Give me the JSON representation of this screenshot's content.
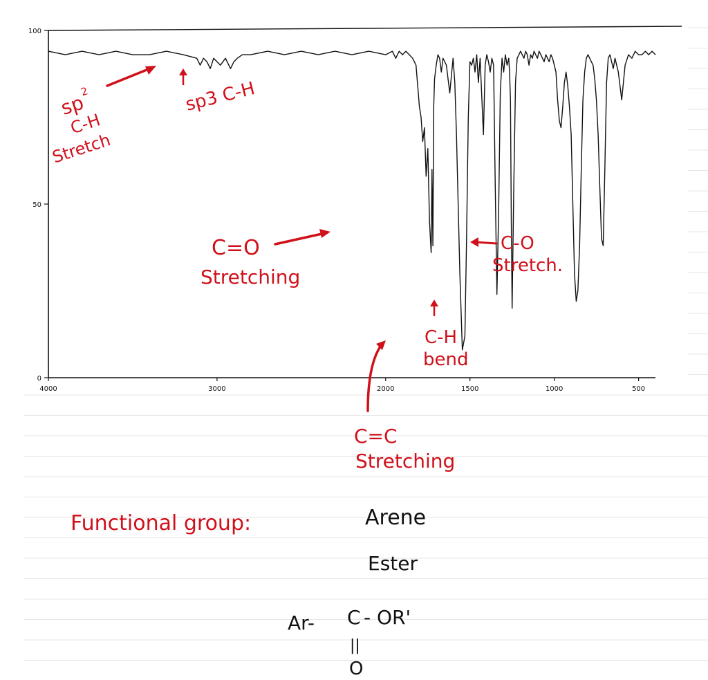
{
  "colors": {
    "annotation": "#d0101a",
    "ink": "#111111",
    "ruled_line": "#e6e6e6",
    "spectrum": "#111111"
  },
  "chart_data": {
    "type": "line",
    "title": "",
    "xlabel": "",
    "ylabel": "",
    "xlim": [
      4000,
      400
    ],
    "ylim": [
      0,
      100
    ],
    "x_ticks": [
      {
        "value": 4000,
        "label": "4000"
      },
      {
        "value": 3000,
        "label": "3000"
      },
      {
        "value": 2000,
        "label": "2000"
      },
      {
        "value": 1500,
        "label": "1500"
      },
      {
        "value": 1000,
        "label": "1000"
      },
      {
        "value": 500,
        "label": "500"
      }
    ],
    "y_ticks": [
      {
        "value": 0,
        "label": "0"
      },
      {
        "value": 50,
        "label": "50"
      },
      {
        "value": 100,
        "label": "100"
      }
    ],
    "grid": false,
    "series": [
      {
        "x": [
          4000,
          3900,
          3800,
          3700,
          3600,
          3500,
          3400,
          3300,
          3200,
          3120,
          3100,
          3080,
          3060,
          3040,
          3020,
          3000,
          2980,
          2950,
          2920,
          2900,
          2880,
          2850,
          2800,
          2700,
          2600,
          2500,
          2400,
          2300,
          2200,
          2100,
          2000,
          1960,
          1940,
          1920,
          1900,
          1880,
          1860,
          1840,
          1820,
          1800,
          1790,
          1780,
          1770,
          1760,
          1750,
          1740,
          1730,
          1725,
          1720,
          1715,
          1710,
          1700,
          1690,
          1680,
          1670,
          1660,
          1640,
          1620,
          1600,
          1590,
          1580,
          1560,
          1545,
          1530,
          1520,
          1510,
          1500,
          1490,
          1480,
          1470,
          1460,
          1450,
          1440,
          1420,
          1410,
          1400,
          1390,
          1380,
          1370,
          1360,
          1350,
          1340,
          1330,
          1320,
          1310,
          1300,
          1290,
          1280,
          1270,
          1265,
          1260,
          1255,
          1250,
          1240,
          1230,
          1220,
          1210,
          1200,
          1190,
          1180,
          1170,
          1160,
          1150,
          1140,
          1130,
          1120,
          1110,
          1100,
          1090,
          1080,
          1070,
          1060,
          1050,
          1040,
          1030,
          1020,
          1010,
          1000,
          990,
          980,
          970,
          960,
          950,
          940,
          930,
          920,
          910,
          900,
          890,
          880,
          870,
          860,
          850,
          840,
          830,
          820,
          810,
          800,
          790,
          780,
          770,
          760,
          750,
          740,
          730,
          720,
          710,
          700,
          690,
          680,
          670,
          660,
          650,
          640,
          620,
          600,
          580,
          560,
          540,
          520,
          500,
          480,
          460,
          440,
          420,
          400
        ],
        "y": [
          94,
          93,
          94,
          93,
          94,
          93,
          93,
          94,
          93,
          92,
          90,
          92,
          91,
          89,
          92,
          91,
          90,
          92,
          89,
          91,
          92,
          93,
          93,
          94,
          93,
          94,
          93,
          94,
          93,
          94,
          93,
          94,
          92,
          94,
          93,
          94,
          93,
          92,
          90,
          78,
          75,
          68,
          72,
          58,
          66,
          45,
          36,
          60,
          38,
          78,
          86,
          90,
          93,
          92,
          88,
          92,
          90,
          82,
          92,
          85,
          70,
          30,
          8,
          12,
          40,
          75,
          91,
          90,
          92,
          88,
          93,
          85,
          92,
          70,
          90,
          93,
          91,
          88,
          92,
          90,
          55,
          24,
          48,
          82,
          92,
          88,
          93,
          90,
          92,
          88,
          80,
          45,
          20,
          55,
          85,
          92,
          93,
          94,
          93,
          92,
          94,
          93,
          90,
          93,
          92,
          94,
          93,
          92,
          94,
          93,
          92,
          91,
          93,
          92,
          91,
          93,
          92,
          90,
          88,
          80,
          74,
          72,
          78,
          85,
          88,
          84,
          78,
          70,
          50,
          30,
          22,
          25,
          38,
          60,
          80,
          88,
          92,
          93,
          92,
          91,
          90,
          86,
          80,
          70,
          55,
          40,
          38,
          60,
          85,
          92,
          93,
          91,
          89,
          92,
          88,
          80,
          90,
          93,
          92,
          94,
          93,
          93,
          94,
          93,
          94,
          93
        ]
      }
    ]
  },
  "annotations": {
    "sp2_a": "sp",
    "sp2_b": "2",
    "sp2_c": "C-H",
    "sp2_d": "Stretch",
    "sp3": "sp3 C-H",
    "co_a": "C=O",
    "co_b": "Stretching",
    "cc_a": "C=C",
    "cc_b": "Stretching",
    "ch_a": "C-H",
    "ch_b": "bend",
    "c_o_a": "C-O",
    "c_o_b": "Stretch."
  },
  "notes": {
    "fg_label": "Functional group:",
    "fg_1": "Arene",
    "fg_2": "Ester",
    "formula_a": "Ar-",
    "formula_b": "C",
    "formula_c": "- OR'",
    "formula_d": "||",
    "formula_e": "O"
  }
}
